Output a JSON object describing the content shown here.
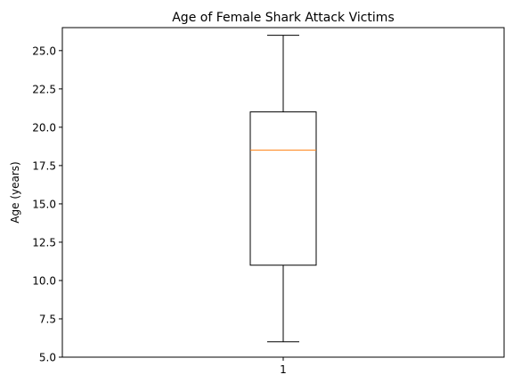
{
  "chart_data": {
    "type": "box",
    "title": "Age of Female Shark Attack Victims",
    "xlabel": "",
    "ylabel": "Age (years)",
    "categories": [
      "1"
    ],
    "ylim": [
      5.0,
      26.5
    ],
    "yticks": [
      "5.0",
      "7.5",
      "10.0",
      "12.5",
      "15.0",
      "17.5",
      "20.0",
      "22.5",
      "25.0"
    ],
    "grid": false,
    "boxes": [
      {
        "category": "1",
        "whisker_low": 6,
        "q1": 11,
        "median": 18.5,
        "q3": 21,
        "whisker_high": 26
      }
    ],
    "colors": {
      "box": "#000000",
      "median": "#ff7f0e",
      "axes": "#000000"
    }
  }
}
